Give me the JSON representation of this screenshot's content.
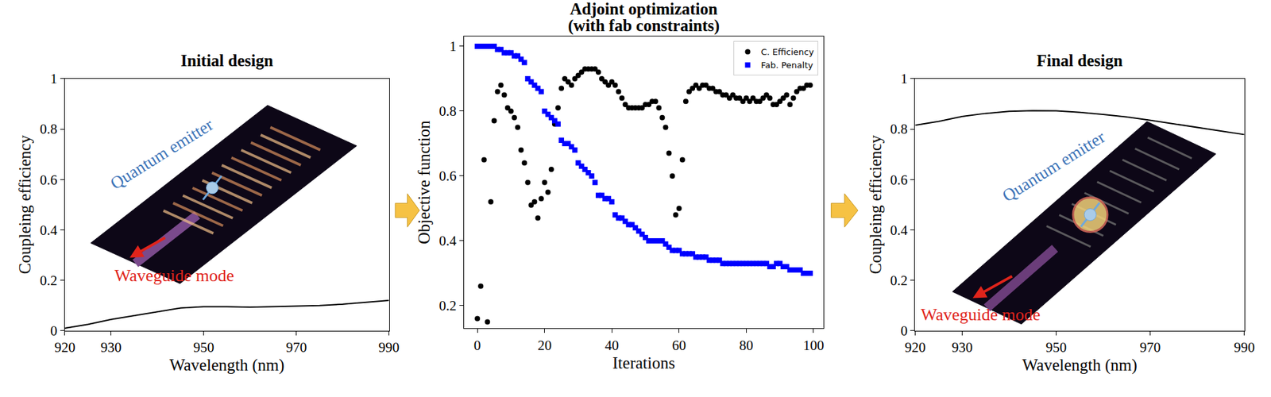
{
  "chart_data": [
    {
      "type": "line",
      "title": "Initial design",
      "x_label": "Wavelength (nm)",
      "y_label": "Coupleing efficiency",
      "x": [
        920,
        925,
        930,
        935,
        940,
        945,
        950,
        955,
        960,
        965,
        970,
        975,
        980,
        985,
        990
      ],
      "values": [
        0.01,
        0.025,
        0.045,
        0.06,
        0.075,
        0.09,
        0.095,
        0.095,
        0.093,
        0.095,
        0.097,
        0.1,
        0.105,
        0.112,
        0.12
      ],
      "color": "#000000",
      "xlim": [
        920,
        990
      ],
      "xticks": [
        920,
        930,
        950,
        970,
        990
      ],
      "ylim": [
        0,
        1
      ],
      "yticks": [
        0,
        0.2,
        0.4,
        0.6,
        0.8,
        1
      ],
      "grid": false,
      "annotations": [
        "Quantum emitter",
        "Waveguide mode"
      ]
    },
    {
      "type": "scatter",
      "title": "Adjoint optimization",
      "subtitle": "(with fab constraints)",
      "x_label": "Iterations",
      "y_label": "Objective function",
      "x": [
        0,
        1,
        2,
        3,
        4,
        5,
        6,
        7,
        8,
        9,
        10,
        11,
        12,
        13,
        14,
        15,
        16,
        17,
        18,
        19,
        20,
        21,
        22,
        23,
        24,
        25,
        26,
        27,
        28,
        29,
        30,
        31,
        32,
        33,
        34,
        35,
        36,
        37,
        38,
        39,
        40,
        41,
        42,
        43,
        44,
        45,
        46,
        47,
        48,
        49,
        50,
        51,
        52,
        53,
        54,
        55,
        56,
        57,
        58,
        59,
        60,
        61,
        62,
        63,
        64,
        65,
        66,
        67,
        68,
        69,
        70,
        71,
        72,
        73,
        74,
        75,
        76,
        77,
        78,
        79,
        80,
        81,
        82,
        83,
        84,
        85,
        86,
        87,
        88,
        89,
        90,
        91,
        92,
        93,
        94,
        95,
        96,
        97,
        98,
        99
      ],
      "series": [
        {
          "name": "C. Efficiency",
          "color": "#000000",
          "marker": "circle",
          "values": [
            0.16,
            0.26,
            0.65,
            0.15,
            0.52,
            0.77,
            0.86,
            0.88,
            0.85,
            0.81,
            0.8,
            0.78,
            0.75,
            0.68,
            0.64,
            0.58,
            0.51,
            0.52,
            0.47,
            0.53,
            0.58,
            0.55,
            0.62,
            0.76,
            0.81,
            0.87,
            0.9,
            0.89,
            0.88,
            0.9,
            0.91,
            0.92,
            0.93,
            0.93,
            0.93,
            0.93,
            0.92,
            0.9,
            0.89,
            0.88,
            0.89,
            0.88,
            0.86,
            0.84,
            0.82,
            0.81,
            0.81,
            0.81,
            0.81,
            0.81,
            0.82,
            0.82,
            0.83,
            0.83,
            0.81,
            0.78,
            0.75,
            0.67,
            0.6,
            0.48,
            0.5,
            0.65,
            0.83,
            0.86,
            0.87,
            0.88,
            0.87,
            0.88,
            0.88,
            0.87,
            0.87,
            0.86,
            0.86,
            0.85,
            0.85,
            0.84,
            0.85,
            0.84,
            0.84,
            0.83,
            0.84,
            0.83,
            0.84,
            0.83,
            0.83,
            0.84,
            0.85,
            0.84,
            0.82,
            0.82,
            0.83,
            0.84,
            0.85,
            0.82,
            0.84,
            0.86,
            0.87,
            0.87,
            0.88,
            0.88
          ]
        },
        {
          "name": "Fab. Penalty",
          "color": "#0000ff",
          "marker": "square",
          "values": [
            1.0,
            1.0,
            1.0,
            1.0,
            1.0,
            1.0,
            0.99,
            0.99,
            0.98,
            0.98,
            0.98,
            0.97,
            0.97,
            0.96,
            0.95,
            0.9,
            0.89,
            0.88,
            0.87,
            0.86,
            0.8,
            0.79,
            0.78,
            0.77,
            0.76,
            0.71,
            0.7,
            0.7,
            0.69,
            0.68,
            0.64,
            0.63,
            0.62,
            0.61,
            0.6,
            0.58,
            0.54,
            0.54,
            0.53,
            0.53,
            0.52,
            0.48,
            0.47,
            0.47,
            0.46,
            0.45,
            0.45,
            0.44,
            0.43,
            0.42,
            0.41,
            0.4,
            0.4,
            0.4,
            0.4,
            0.4,
            0.39,
            0.38,
            0.37,
            0.37,
            0.37,
            0.36,
            0.36,
            0.36,
            0.36,
            0.35,
            0.35,
            0.35,
            0.35,
            0.34,
            0.34,
            0.34,
            0.34,
            0.33,
            0.33,
            0.33,
            0.33,
            0.33,
            0.33,
            0.33,
            0.33,
            0.33,
            0.33,
            0.33,
            0.33,
            0.33,
            0.33,
            0.32,
            0.32,
            0.33,
            0.33,
            0.32,
            0.32,
            0.31,
            0.31,
            0.31,
            0.31,
            0.3,
            0.3,
            0.3
          ]
        }
      ],
      "xlim": [
        -4,
        103
      ],
      "xticks": [
        0,
        20,
        40,
        60,
        80,
        100
      ],
      "ylim": [
        0.13,
        1.03
      ],
      "yticks": [
        0.2,
        0.4,
        0.6,
        0.8,
        1
      ],
      "grid": false,
      "legend": "upper right"
    },
    {
      "type": "line",
      "title": "Final design",
      "x_label": "Wavelength (nm)",
      "y_label": "Coupleing efficiency",
      "x": [
        920,
        925,
        930,
        935,
        940,
        945,
        950,
        955,
        960,
        965,
        970,
        975,
        980,
        985,
        990
      ],
      "values": [
        0.815,
        0.83,
        0.85,
        0.862,
        0.87,
        0.873,
        0.872,
        0.866,
        0.858,
        0.848,
        0.835,
        0.82,
        0.805,
        0.792,
        0.778
      ],
      "color": "#000000",
      "xlim": [
        920,
        990
      ],
      "xticks": [
        920,
        930,
        950,
        970,
        990
      ],
      "ylim": [
        0,
        1
      ],
      "yticks": [
        0,
        0.2,
        0.4,
        0.6,
        0.8,
        1
      ],
      "grid": false,
      "annotations": [
        "Quantum emitter",
        "Waveguide mode"
      ]
    }
  ]
}
